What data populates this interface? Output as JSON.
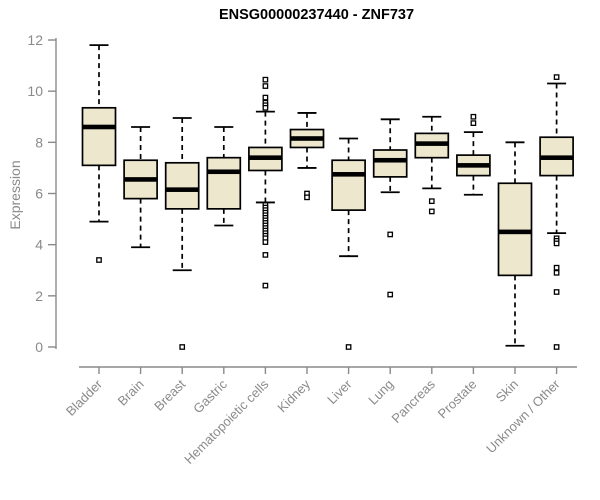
{
  "chart_data": {
    "type": "boxplot",
    "title": "ENSG00000237440 - ZNF737",
    "ylabel": "Expression",
    "xlabel": "",
    "ylim": [
      0,
      12
    ],
    "yticks": [
      0,
      2,
      4,
      6,
      8,
      10,
      12
    ],
    "grid": false,
    "legend": "none",
    "box_fill_color": "#EDE7CD",
    "box_stroke_color": "#000000",
    "axis_color": "#8a8a8a",
    "categories": [
      "Bladder",
      "Brain",
      "Breast",
      "Gastric",
      "Hematopoietic cells",
      "Kidney",
      "Liver",
      "Lung",
      "Pancreas",
      "Prostate",
      "Skin",
      "Unknown / Other"
    ],
    "boxes": [
      {
        "category": "Bladder",
        "whisker_low": 4.9,
        "q1": 7.1,
        "median": 8.6,
        "q3": 9.35,
        "whisker_high": 11.8,
        "outliers": [
          3.4
        ]
      },
      {
        "category": "Brain",
        "whisker_low": 3.9,
        "q1": 5.8,
        "median": 6.55,
        "q3": 7.3,
        "whisker_high": 8.6,
        "outliers": []
      },
      {
        "category": "Breast",
        "whisker_low": 3.0,
        "q1": 5.4,
        "median": 6.15,
        "q3": 7.2,
        "whisker_high": 8.95,
        "outliers": [
          0.0
        ]
      },
      {
        "category": "Gastric",
        "whisker_low": 4.75,
        "q1": 5.4,
        "median": 6.85,
        "q3": 7.4,
        "whisker_high": 8.6,
        "outliers": []
      },
      {
        "category": "Hematopoietic cells",
        "whisker_low": 5.65,
        "q1": 6.9,
        "median": 7.4,
        "q3": 7.8,
        "whisker_high": 9.2,
        "outliers": [
          10.45,
          10.2,
          9.75,
          9.55,
          9.45,
          9.35,
          5.55,
          5.45,
          5.35,
          5.25,
          5.15,
          5.05,
          4.95,
          4.85,
          4.75,
          4.65,
          4.55,
          4.45,
          4.35,
          4.25,
          4.1,
          3.6,
          2.4
        ]
      },
      {
        "category": "Kidney",
        "whisker_low": 7.0,
        "q1": 7.8,
        "median": 8.15,
        "q3": 8.5,
        "whisker_high": 9.15,
        "outliers": [
          6.0,
          5.85
        ]
      },
      {
        "category": "Liver",
        "whisker_low": 3.55,
        "q1": 5.35,
        "median": 6.75,
        "q3": 7.3,
        "whisker_high": 8.15,
        "outliers": [
          0.0
        ]
      },
      {
        "category": "Lung",
        "whisker_low": 6.05,
        "q1": 6.65,
        "median": 7.3,
        "q3": 7.7,
        "whisker_high": 8.9,
        "outliers": [
          4.4,
          2.05
        ]
      },
      {
        "category": "Pancreas",
        "whisker_low": 6.2,
        "q1": 7.4,
        "median": 7.95,
        "q3": 8.35,
        "whisker_high": 9.0,
        "outliers": [
          5.7,
          5.3
        ]
      },
      {
        "category": "Prostate",
        "whisker_low": 5.95,
        "q1": 6.7,
        "median": 7.1,
        "q3": 7.5,
        "whisker_high": 8.4,
        "outliers": [
          9.0,
          8.75
        ]
      },
      {
        "category": "Skin",
        "whisker_low": 0.05,
        "q1": 2.8,
        "median": 4.5,
        "q3": 6.4,
        "whisker_high": 8.0,
        "outliers": []
      },
      {
        "category": "Unknown / Other",
        "whisker_low": 4.45,
        "q1": 6.7,
        "median": 7.4,
        "q3": 8.2,
        "whisker_high": 10.3,
        "outliers": [
          10.55,
          4.25,
          4.15,
          4.05,
          3.1,
          2.9,
          2.15,
          0.0
        ]
      }
    ]
  }
}
